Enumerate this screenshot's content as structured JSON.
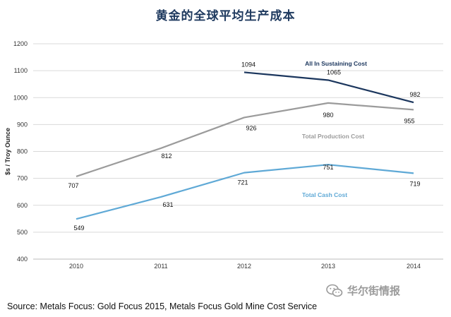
{
  "chart_data": {
    "type": "line",
    "title": "黄金的全球平均生产成本",
    "xlabel": "",
    "ylabel": "$s / Troy Ounce",
    "categories": [
      "2010",
      "2011",
      "2012",
      "2013",
      "2014"
    ],
    "ylim": [
      400,
      1200
    ],
    "yticks": [
      "400",
      "500",
      "600",
      "700",
      "800",
      "900",
      "1000",
      "1100",
      "1200"
    ],
    "grid": true,
    "series": [
      {
        "name": "All In Sustaining Cost",
        "color": "#1b365d",
        "values": [
          null,
          null,
          1094,
          1065,
          982
        ],
        "labels": [
          "",
          "",
          "1094",
          "1065",
          "982"
        ]
      },
      {
        "name": "Total Production Cost",
        "color": "#9b9b9b",
        "values": [
          707,
          812,
          926,
          980,
          955
        ],
        "labels": [
          "707",
          "812",
          "926",
          "980",
          "955"
        ]
      },
      {
        "name": "Total Cash Cost",
        "color": "#5fa9d6",
        "values": [
          549,
          631,
          721,
          751,
          719
        ],
        "labels": [
          "549",
          "631",
          "721",
          "751",
          "719"
        ]
      }
    ]
  },
  "source": "Source: Metals Focus: Gold Focus 2015, Metals Focus Gold Mine Cost Service",
  "watermark": {
    "icon": "wechat-icon",
    "text": "华尔街情报"
  }
}
